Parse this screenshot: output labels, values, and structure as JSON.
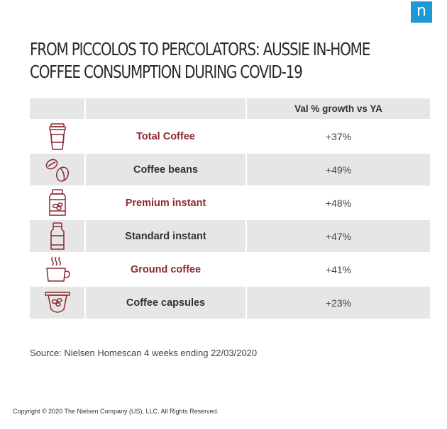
{
  "logo": {
    "letter": "n",
    "color": "#1c9ad6"
  },
  "title": "FROM PICCOLOS TO PERCOLATORS: AUSSIE IN-HOME\nCOFFEE CONSUMPTION DURING COVID-19",
  "chart_data": {
    "type": "table",
    "title": "FROM PICCOLOS TO PERCOLATORS: AUSSIE IN-HOME COFFEE CONSUMPTION DURING COVID-19",
    "columns": [
      "",
      "",
      "Val % growth vs YA"
    ],
    "rows": [
      {
        "icon": "coffee-cup-icon",
        "category": "Total Coffee",
        "value": "+37%",
        "label_color": "#8b2a2f"
      },
      {
        "icon": "coffee-beans-icon",
        "category": "Coffee beans",
        "value": "+49%",
        "label_color": "#333333"
      },
      {
        "icon": "premium-instant-jar-icon",
        "category": "Premium instant",
        "value": "+48%",
        "label_color": "#8b2a2f"
      },
      {
        "icon": "standard-instant-jar-icon",
        "category": "Standard instant",
        "value": "+47%",
        "label_color": "#333333"
      },
      {
        "icon": "steaming-cup-icon",
        "category": "Ground coffee",
        "value": "+41%",
        "label_color": "#8b2a2f"
      },
      {
        "icon": "coffee-capsule-icon",
        "category": "Coffee capsules",
        "value": "+23%",
        "label_color": "#333333"
      }
    ],
    "icon_color": "#8b2a2f",
    "shade_color": "#e6e6e6"
  },
  "source": "Source: Nielsen Homescan 4 weeks ending 22/03/2020",
  "copyright": "Copyright © 2020 The Nielsen Company (US), LLC. All Rights Reserved."
}
